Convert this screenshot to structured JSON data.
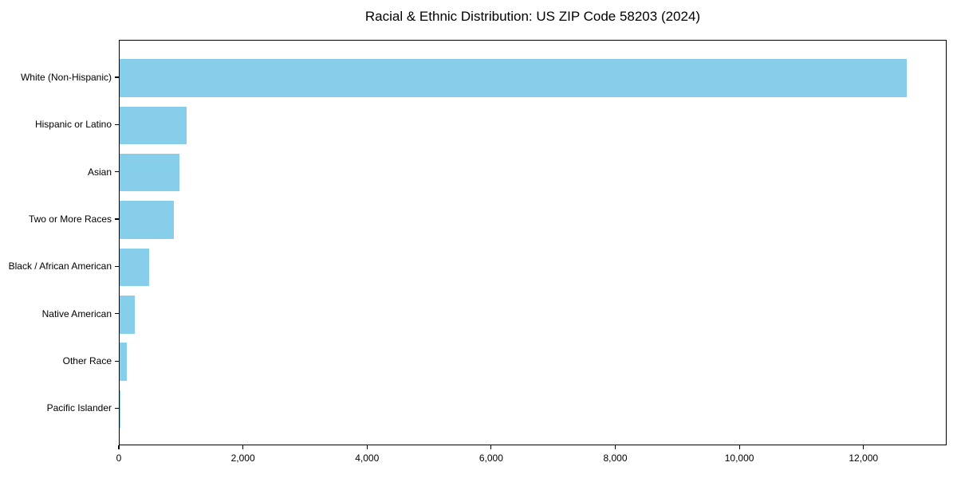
{
  "title": "Racial & Ethnic Distribution: US ZIP Code 58203 (2024)",
  "chart_data": {
    "type": "bar",
    "orientation": "horizontal",
    "title": "Racial & Ethnic Distribution: US ZIP Code 58203 (2024)",
    "categories": [
      "White (Non-Hispanic)",
      "Hispanic or Latino",
      "Asian",
      "Two or More Races",
      "Black / African American",
      "Native American",
      "Other Race",
      "Pacific Islander"
    ],
    "values": [
      12680,
      1075,
      965,
      870,
      470,
      245,
      120,
      10
    ],
    "xlabel": "",
    "ylabel": "",
    "xlim": [
      0,
      13340
    ],
    "xticks": [
      0,
      2000,
      4000,
      6000,
      8000,
      10000,
      12000
    ],
    "xtick_labels": [
      "0",
      "2,000",
      "4,000",
      "6,000",
      "8,000",
      "10,000",
      "12,000"
    ],
    "bar_color": "#87CEEB",
    "frame_color": "#000000",
    "background_color": "#FFFFFF",
    "grid": false,
    "legend_position": "none"
  }
}
